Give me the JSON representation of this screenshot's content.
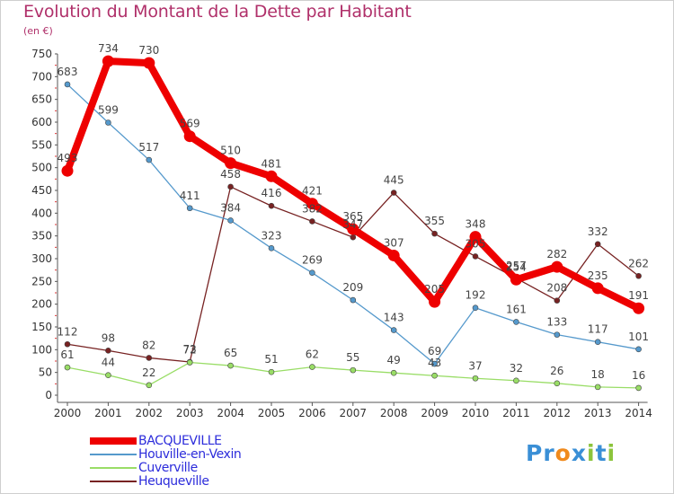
{
  "title": "Evolution du Montant de la Dette par Habitant",
  "unit": "(en €)",
  "logo": {
    "letters": [
      "P",
      "r",
      "o",
      "x",
      "i",
      "t",
      "i"
    ],
    "colors": [
      "#3a8fd6",
      "#3a8fd6",
      "#f08a1c",
      "#3a8fd6",
      "#8cc43c",
      "#3a8fd6",
      "#8cc43c"
    ]
  },
  "chart_data": {
    "type": "line",
    "title": "Evolution du Montant de la Dette par Habitant",
    "ylabel": "(en €)",
    "xlabel": "",
    "ylim": [
      0,
      750
    ],
    "yticks": [
      0,
      50,
      100,
      150,
      200,
      250,
      300,
      350,
      400,
      450,
      500,
      550,
      600,
      650,
      700,
      750
    ],
    "grid": false,
    "legend_position": "bottom-left",
    "categories": [
      "2000",
      "2001",
      "2002",
      "2003",
      "2004",
      "2005",
      "2006",
      "2007",
      "2008",
      "2009",
      "2010",
      "2011",
      "2012",
      "2013",
      "2014"
    ],
    "series": [
      {
        "name": "BACQUEVILLE",
        "color": "#ee0000",
        "values": [
          493,
          734,
          730,
          569,
          510,
          481,
          421,
          365,
          307,
          205,
          348,
          254,
          282,
          235,
          191
        ],
        "labels": [
          "493",
          "734",
          "730",
          "569",
          "510",
          "481",
          "421",
          "365",
          "307",
          "205",
          "348",
          "254",
          "282",
          "235",
          "191"
        ]
      },
      {
        "name": "Houville-en-Vexin",
        "color": "#5599cc",
        "values": [
          683,
          599,
          517,
          411,
          384,
          323,
          269,
          209,
          143,
          69,
          192,
          161,
          133,
          117,
          101
        ],
        "labels": [
          "683",
          "599",
          "517",
          "411",
          "384",
          "323",
          "269",
          "209",
          "143",
          "69",
          "192",
          "161",
          "133",
          "117",
          "101"
        ]
      },
      {
        "name": "Cuverville",
        "color": "#99dd66",
        "values": [
          61,
          44,
          22,
          72,
          65,
          51,
          62,
          55,
          49,
          43,
          37,
          32,
          26,
          18,
          16
        ],
        "labels": [
          "61",
          "44",
          "22",
          "72",
          "65",
          "51",
          "62",
          "55",
          "49",
          "43",
          "37",
          "32",
          "26",
          "18",
          "16"
        ]
      },
      {
        "name": "Heuqueville",
        "color": "#772222",
        "values": [
          112,
          98,
          82,
          73,
          458,
          416,
          382,
          347,
          445,
          355,
          305,
          257,
          208,
          332,
          262
        ],
        "labels": [
          "112",
          "98",
          "82",
          "73",
          "458",
          "416",
          "382",
          "347",
          "445",
          "355",
          "305",
          "257",
          "208",
          "332",
          "262"
        ]
      }
    ]
  }
}
